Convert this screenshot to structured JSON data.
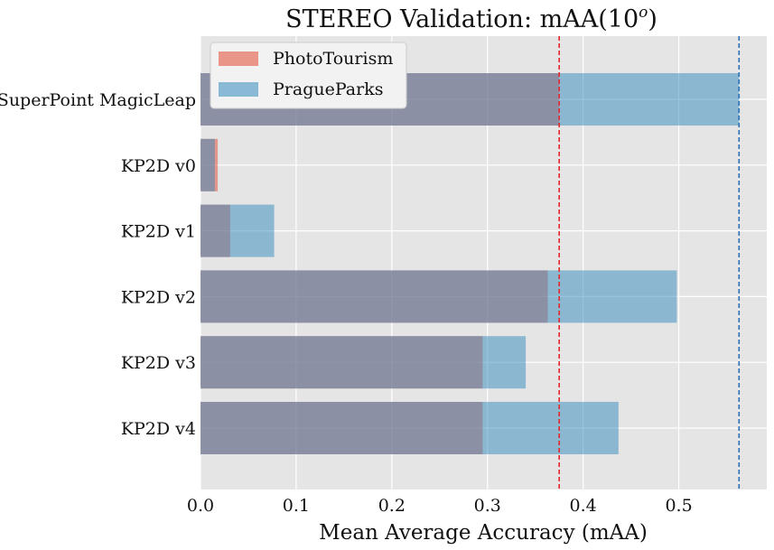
{
  "chart_data": {
    "type": "bar",
    "orientation": "horizontal",
    "title": "STEREO Validation: mAA(10",
    "title_superscript": "o",
    "title_suffix": ")",
    "xlabel": "Mean Average Accuracy (mAA)",
    "ylabel": "",
    "categories": [
      "SuperPoint MagicLeap",
      "KP2D v0",
      "KP2D v1",
      "KP2D v2",
      "KP2D v3",
      "KP2D v4"
    ],
    "series": [
      {
        "name": "PhotoTourism",
        "values": [
          0.375,
          0.018,
          0.031,
          0.363,
          0.295,
          0.295
        ],
        "color": "#e24a33"
      },
      {
        "name": "PragueParks",
        "values": [
          0.563,
          0.015,
          0.077,
          0.498,
          0.34,
          0.437
        ],
        "color": "#348abd"
      }
    ],
    "reference_lines": [
      {
        "series": "PhotoTourism",
        "value": 0.375,
        "style": "dashed",
        "color": "#e8252b"
      },
      {
        "series": "PragueParks",
        "value": 0.563,
        "style": "dashed",
        "color": "#2b6fb5"
      }
    ],
    "xticks": [
      "0.0",
      "0.1",
      "0.2",
      "0.3",
      "0.4",
      "0.5"
    ],
    "xtick_values": [
      0,
      0.1,
      0.2,
      0.3,
      0.4,
      0.5
    ],
    "xlim": [
      0,
      0.592
    ],
    "grid": true,
    "legend_position": "top-left",
    "background_color": "#e5e5e5"
  }
}
